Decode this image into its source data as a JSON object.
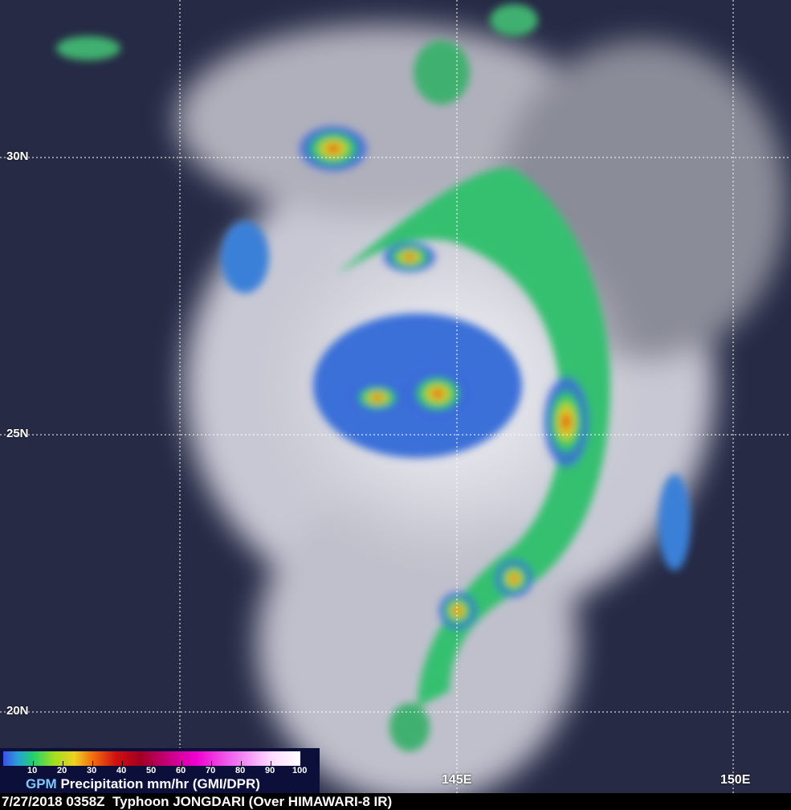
{
  "map": {
    "latitude_labels": [
      "30N",
      "25N",
      "20N"
    ],
    "longitude_labels": [
      "145E",
      "150E"
    ]
  },
  "legend": {
    "ticks": [
      "10",
      "20",
      "30",
      "40",
      "50",
      "60",
      "70",
      "80",
      "90",
      "100"
    ],
    "source": "GPM",
    "title": "Precipitation mm/hr (GMI/DPR)"
  },
  "caption": "7/27/2018 0358Z  Typhoon JONGDARI (Over HIMAWARI-8 IR)"
}
